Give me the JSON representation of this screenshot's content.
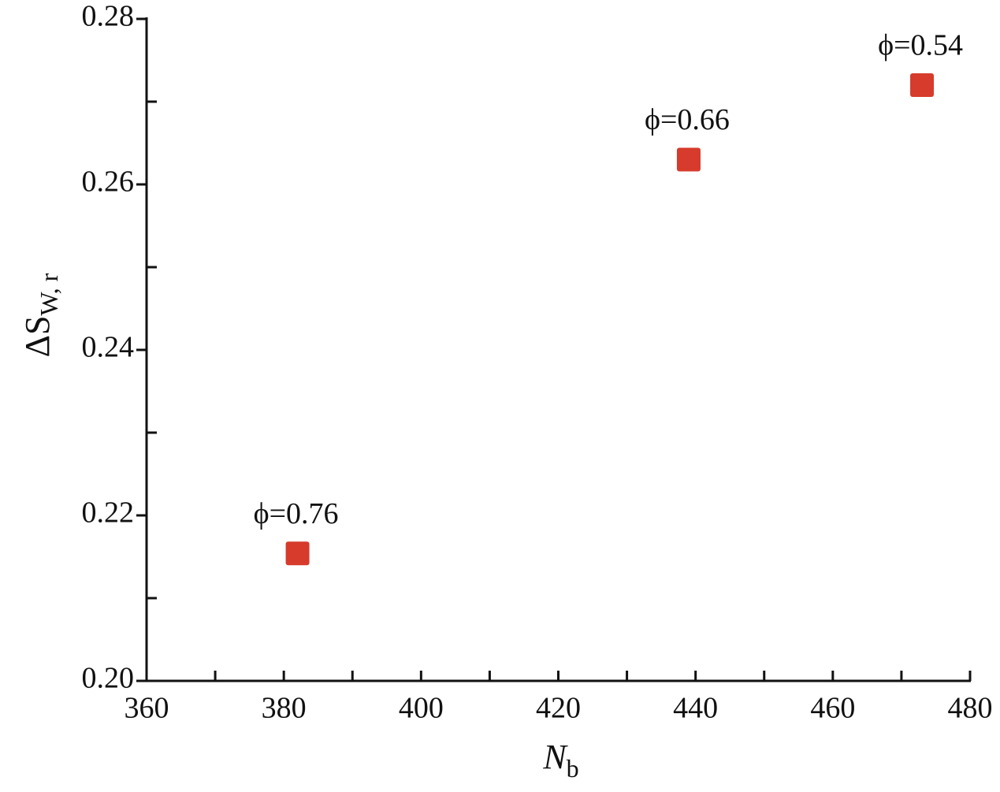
{
  "chart_data": {
    "type": "scatter",
    "x_label": "N",
    "x_label_sub": "b",
    "y_label": "ΔS",
    "y_label_sub": "W, r",
    "x": [
      382,
      439,
      473
    ],
    "values": [
      0.2154,
      0.263,
      0.272
    ],
    "point_labels": [
      "ϕ=0.76",
      "ϕ=0.66",
      "ϕ=0.54"
    ],
    "color": "#d63b2b",
    "xlim": [
      360,
      480
    ],
    "xticks": [
      360,
      380,
      400,
      420,
      440,
      460,
      480
    ],
    "x_minor_ticks": [
      370,
      390,
      410,
      430,
      450,
      470
    ],
    "ylim": [
      0.2,
      0.28
    ],
    "yticks": [
      {
        "value": 0.2,
        "label": "0.20"
      },
      {
        "value": 0.22,
        "label": "0.22"
      },
      {
        "value": 0.24,
        "label": "0.24"
      },
      {
        "value": 0.26,
        "label": "0.26"
      },
      {
        "value": 0.28,
        "label": "0.28"
      }
    ],
    "y_minor_ticks": [
      0.21,
      0.23,
      0.25,
      0.27
    ]
  }
}
